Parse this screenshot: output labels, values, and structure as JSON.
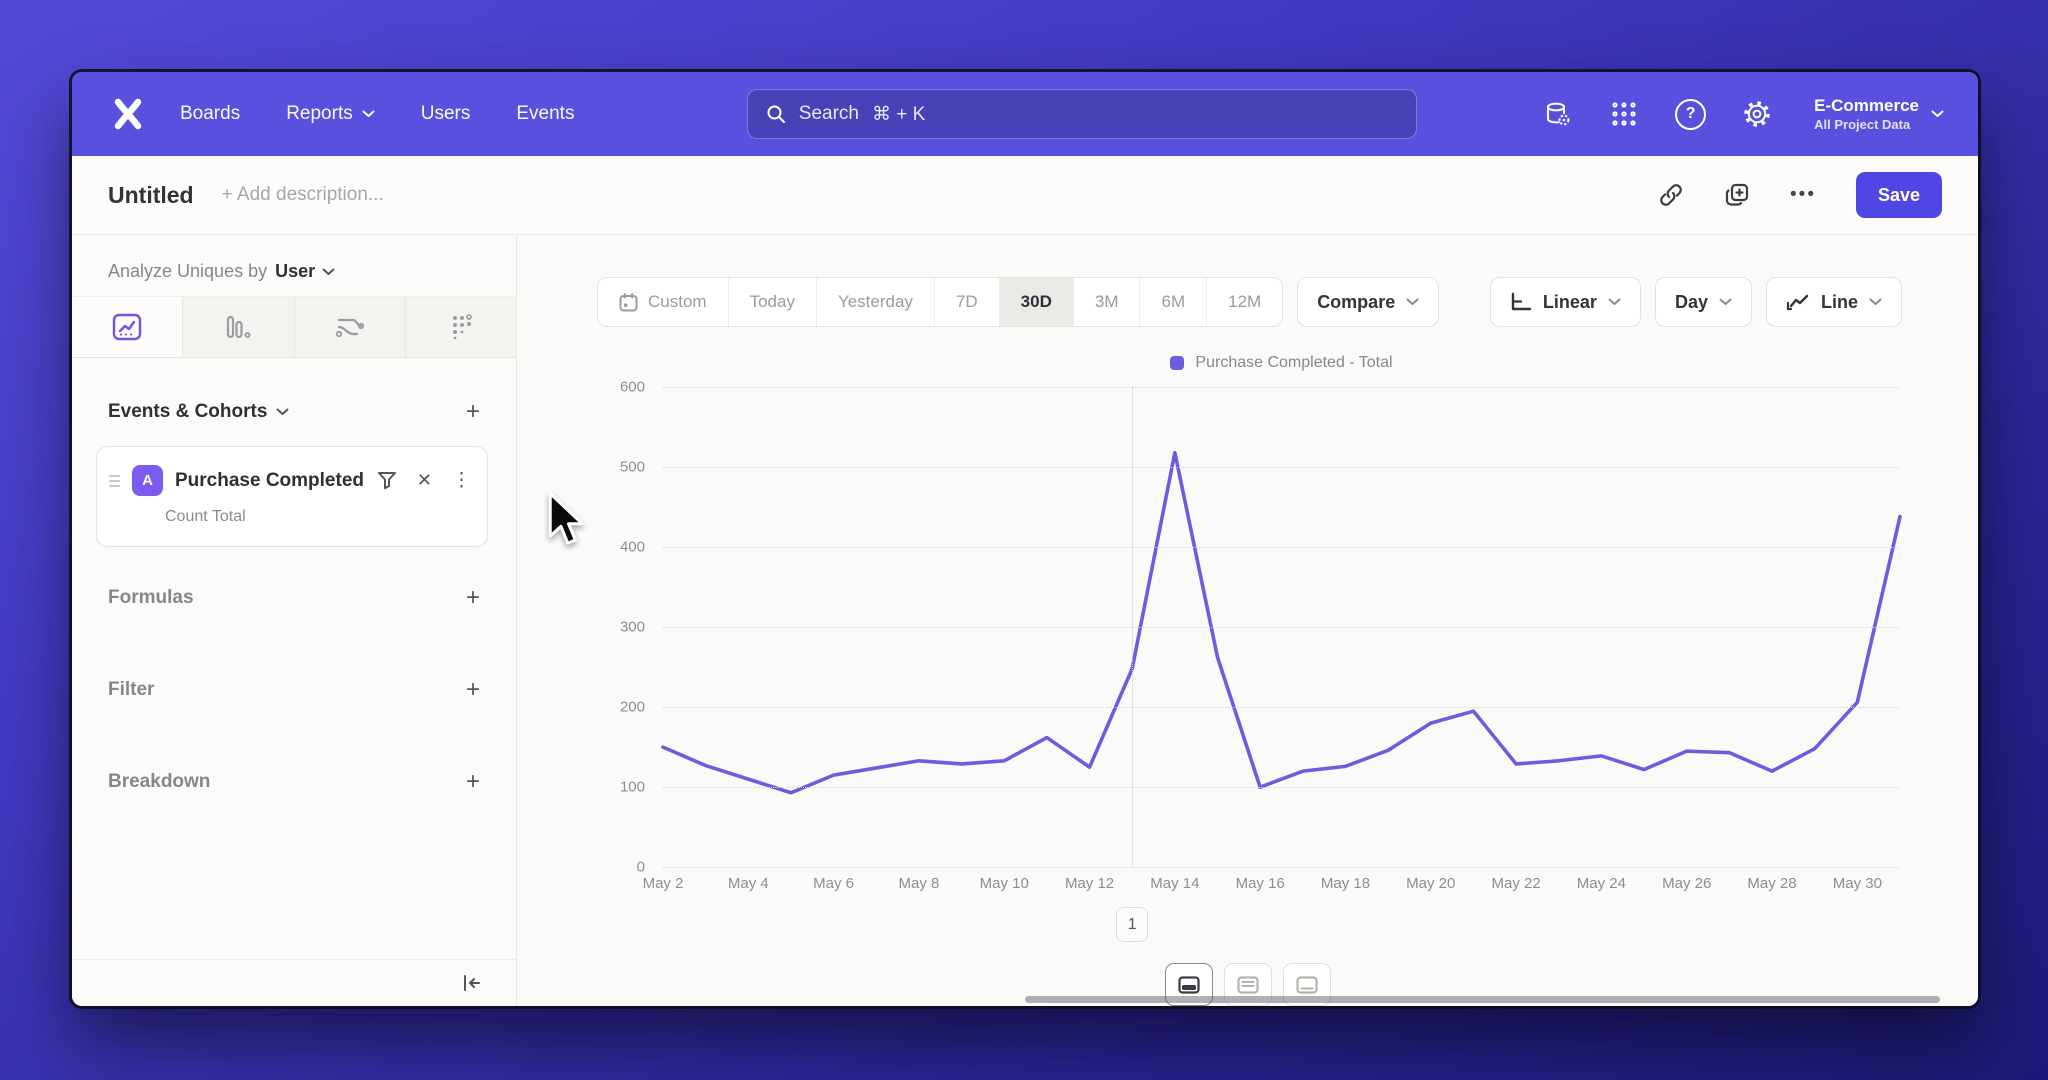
{
  "navbar": {
    "items": [
      "Boards",
      "Reports",
      "Users",
      "Events"
    ],
    "search": {
      "placeholder": "Search",
      "shortcut": "⌘ + K"
    },
    "project": {
      "name": "E-Commerce",
      "scope": "All Project Data"
    }
  },
  "header": {
    "title": "Untitled",
    "description_placeholder": "+ Add description...",
    "save_label": "Save"
  },
  "sidebar": {
    "analyze_label": "Analyze Uniques by",
    "analyze_value": "User",
    "events_header": "Events & Cohorts",
    "event_card": {
      "badge": "A",
      "title": "Purchase Completed",
      "subtitle": "Count Total"
    },
    "sections": [
      {
        "label": "Formulas"
      },
      {
        "label": "Filter"
      },
      {
        "label": "Breakdown"
      }
    ]
  },
  "toolbar": {
    "ranges": [
      "Custom",
      "Today",
      "Yesterday",
      "7D",
      "30D",
      "3M",
      "6M",
      "12M"
    ],
    "active_range": "30D",
    "compare_label": "Compare",
    "scale_label": "Linear",
    "interval_label": "Day",
    "chart_type_label": "Line"
  },
  "icons": {
    "ellipsis": "•••",
    "close": "✕",
    "kebab": "⋮",
    "plus": "+",
    "help": "?"
  },
  "colors": {
    "accent": "#5a50e0",
    "save_button": "#4f46e5",
    "line": "#6c5ce0",
    "event_badge": "#7c5cf0",
    "active_tab_icon": "#7450e8"
  },
  "chart_data": {
    "type": "line",
    "legend": [
      "Purchase Completed - Total"
    ],
    "x": [
      "May 2",
      "May 3",
      "May 4",
      "May 5",
      "May 6",
      "May 7",
      "May 8",
      "May 9",
      "May 10",
      "May 11",
      "May 12",
      "May 13",
      "May 14",
      "May 15",
      "May 16",
      "May 17",
      "May 18",
      "May 19",
      "May 20",
      "May 21",
      "May 22",
      "May 23",
      "May 24",
      "May 25",
      "May 26",
      "May 27",
      "May 28",
      "May 29",
      "May 30",
      "May 31"
    ],
    "values": [
      150,
      127,
      110,
      93,
      115,
      124,
      133,
      129,
      133,
      162,
      125,
      248,
      518,
      262,
      100,
      120,
      126,
      146,
      180,
      195,
      129,
      133,
      139,
      122,
      145,
      143,
      120,
      148,
      206,
      438
    ],
    "x_tick_labels": [
      "May 2",
      "May 4",
      "May 6",
      "May 8",
      "May 10",
      "May 12",
      "May 14",
      "May 16",
      "May 18",
      "May 20",
      "May 22",
      "May 24",
      "May 26",
      "May 28",
      "May 30"
    ],
    "y_ticks": [
      0,
      100,
      200,
      300,
      400,
      500,
      600
    ],
    "ylim": [
      0,
      600
    ],
    "grid": "dotted",
    "legend_position": "top-center",
    "annotation": {
      "label": "1",
      "x": "May 13",
      "index": 11
    }
  }
}
